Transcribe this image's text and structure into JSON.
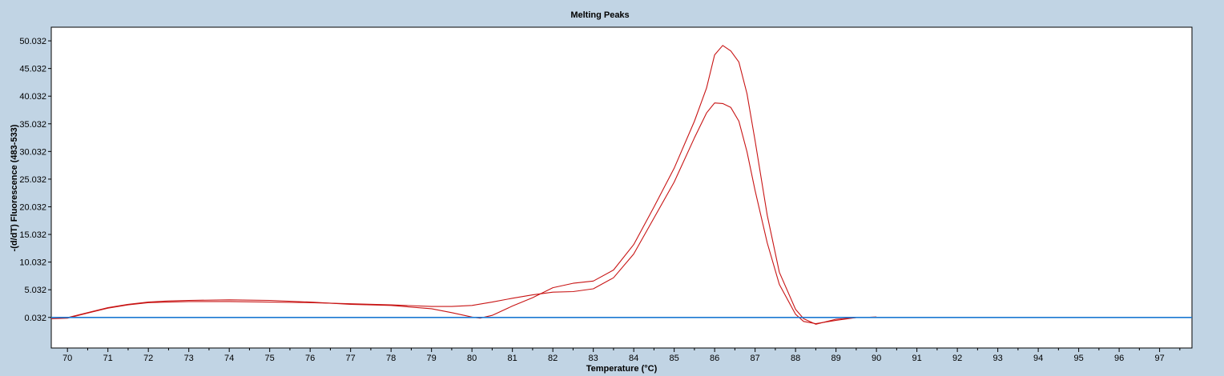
{
  "chart_data": {
    "type": "line",
    "title": "Melting Peaks",
    "xlabel": "Temperature (°C)",
    "ylabel": "-(d/dT) Fluorescence (483-533)",
    "xlim": [
      69.6,
      97.8
    ],
    "ylim": [
      -5.5,
      52.5
    ],
    "x_ticks": [
      70,
      71,
      72,
      73,
      74,
      75,
      76,
      77,
      78,
      79,
      80,
      81,
      82,
      83,
      84,
      85,
      86,
      87,
      88,
      89,
      90,
      91,
      92,
      93,
      94,
      95,
      96,
      97
    ],
    "y_ticks": [
      0.032,
      5.032,
      10.032,
      15.032,
      20.032,
      25.032,
      30.032,
      35.032,
      40.032,
      45.032,
      50.032
    ],
    "y_tick_labels": [
      "0.032",
      "5.032",
      "10.032",
      "15.032",
      "20.032",
      "25.032",
      "30.032",
      "35.032",
      "40.032",
      "45.032",
      "50.032"
    ],
    "grid": false,
    "legend": "none",
    "colors": {
      "sample": "#c81414",
      "baseline": "#1a78d2",
      "plot_bg": "#ffffff",
      "frame_bg": "#c1d4e4"
    },
    "series": [
      {
        "x": [
          69.6,
          70.0,
          70.5,
          71.0,
          71.5,
          72.0,
          72.5,
          73.0,
          74.0,
          75.0,
          76.0,
          77.0,
          78.0,
          79.0,
          79.5,
          80.0,
          80.5,
          81.0,
          81.5,
          82.0,
          82.5,
          83.0,
          83.5,
          84.0,
          84.5,
          85.0,
          85.5,
          85.8,
          86.0,
          86.2,
          86.4,
          86.6,
          86.8,
          87.0,
          87.3,
          87.6,
          88.0,
          88.2,
          88.5,
          89.0,
          89.5,
          90.0
        ],
        "y": [
          -0.2,
          -0.1,
          0.8,
          1.7,
          2.3,
          2.7,
          2.8,
          2.9,
          2.9,
          2.8,
          2.7,
          2.5,
          2.3,
          2.0,
          2.0,
          2.2,
          2.8,
          3.5,
          4.1,
          4.6,
          4.7,
          5.2,
          7.2,
          11.5,
          18.0,
          24.5,
          32.5,
          37.0,
          38.8,
          38.7,
          38.0,
          35.5,
          30.0,
          23.0,
          13.5,
          6.0,
          0.6,
          -0.7,
          -1.1,
          -0.5,
          0.0,
          0.1
        ]
      },
      {
        "x": [
          69.6,
          70.0,
          70.5,
          71.0,
          71.5,
          72.0,
          72.5,
          73.0,
          74.0,
          75.0,
          76.0,
          77.0,
          78.0,
          79.0,
          79.5,
          80.0,
          80.2,
          80.5,
          81.0,
          81.5,
          82.0,
          82.5,
          83.0,
          83.5,
          84.0,
          84.5,
          85.0,
          85.5,
          85.8,
          86.0,
          86.2,
          86.4,
          86.6,
          86.8,
          87.0,
          87.3,
          87.6,
          88.0,
          88.2,
          88.5,
          89.0,
          89.5,
          90.0
        ],
        "y": [
          0.0,
          0.0,
          0.9,
          1.8,
          2.4,
          2.8,
          3.0,
          3.1,
          3.2,
          3.1,
          2.8,
          2.4,
          2.2,
          1.6,
          0.9,
          0.1,
          -0.1,
          0.4,
          2.1,
          3.6,
          5.4,
          6.2,
          6.6,
          8.6,
          13.2,
          20.0,
          27.0,
          35.5,
          41.5,
          47.5,
          49.2,
          48.2,
          46.2,
          40.5,
          32.0,
          18.5,
          8.2,
          1.5,
          -0.2,
          -1.2,
          -0.3,
          0.0,
          0.1
        ]
      },
      {
        "x": [
          69.6,
          97.8
        ],
        "y": [
          0.032,
          0.032
        ]
      }
    ]
  }
}
